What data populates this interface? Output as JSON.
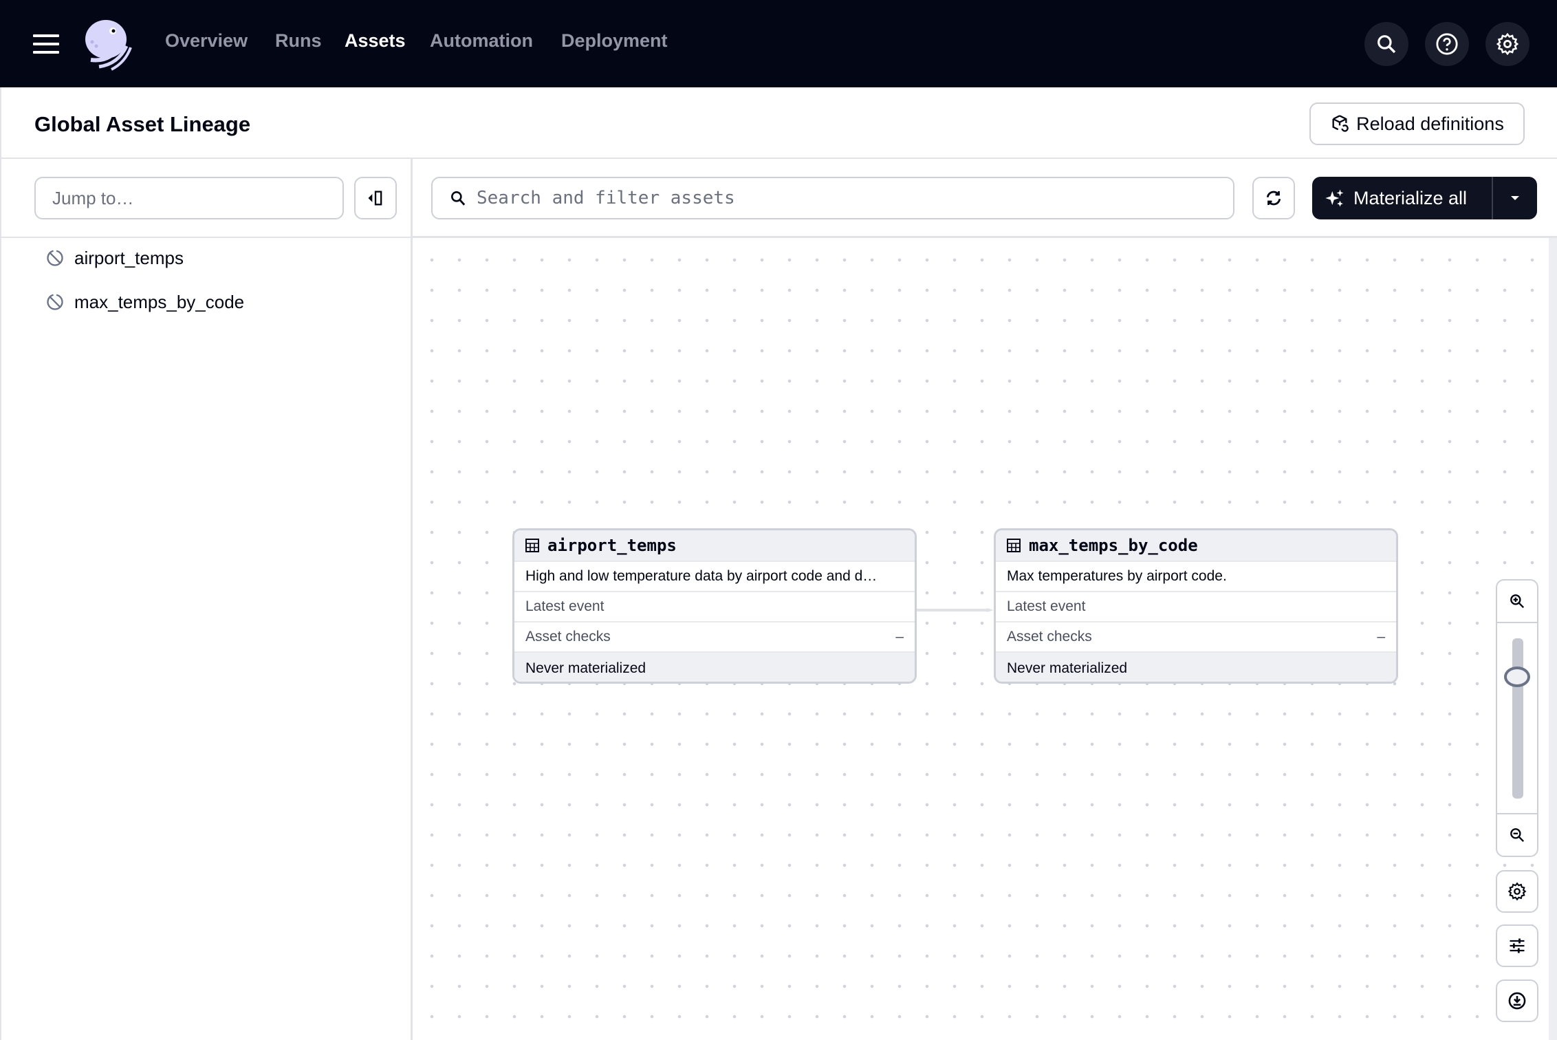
{
  "nav": {
    "items": [
      {
        "label": "Overview",
        "active": false
      },
      {
        "label": "Runs",
        "active": false
      },
      {
        "label": "Assets",
        "active": true
      },
      {
        "label": "Automation",
        "active": false
      },
      {
        "label": "Deployment",
        "active": false
      }
    ],
    "icons": [
      "menu-icon",
      "dagster-logo",
      "search-icon",
      "help-icon",
      "gear-icon"
    ]
  },
  "header": {
    "title": "Global Asset Lineage",
    "reload_label": "Reload definitions"
  },
  "sidebar": {
    "jump_placeholder": "Jump to…",
    "items": [
      {
        "label": "airport_temps"
      },
      {
        "label": "max_temps_by_code"
      }
    ]
  },
  "toolbar": {
    "search_placeholder": "Search and filter assets",
    "materialize_label": "Materialize all",
    "accent": "#0f1221"
  },
  "graph": {
    "nodes": [
      {
        "name": "airport_temps",
        "description": "High and low temperature data by airport code and d…",
        "latest_event_label": "Latest event",
        "checks_label": "Asset checks",
        "checks_value": "–",
        "status": "Never materialized"
      },
      {
        "name": "max_temps_by_code",
        "description": "Max temperatures by airport code.",
        "latest_event_label": "Latest event",
        "checks_label": "Asset checks",
        "checks_value": "–",
        "status": "Never materialized"
      }
    ],
    "edges": [
      {
        "from": "airport_temps",
        "to": "max_temps_by_code"
      }
    ],
    "zoom_level": 0.76
  }
}
